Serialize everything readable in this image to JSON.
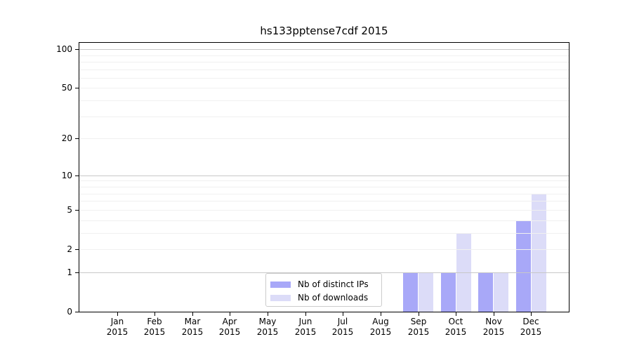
{
  "figure": {
    "background": "#ffffff"
  },
  "chart_data": {
    "type": "bar",
    "title": "hs133pptense7cdf 2015",
    "xlabel": "",
    "ylabel": "",
    "categories": [
      "Jan",
      "Feb",
      "Mar",
      "Apr",
      "May",
      "Jun",
      "Jul",
      "Aug",
      "Sep",
      "Oct",
      "Nov",
      "Dec"
    ],
    "x_tick_year": "2015",
    "series": [
      {
        "name": "Nb of distinct IPs",
        "color": "#a8a8f8",
        "values": [
          0,
          0,
          0,
          0,
          0,
          0,
          0,
          0,
          1,
          1,
          1,
          4
        ]
      },
      {
        "name": "Nb of downloads",
        "color": "#dcdcf8",
        "values": [
          0,
          0,
          0,
          0,
          0,
          0,
          0,
          0,
          1,
          3,
          1,
          7
        ]
      }
    ],
    "y_scale": "log10(1+v)",
    "ylim": [
      0,
      112
    ],
    "y_tick_values": [
      0,
      1,
      2,
      5,
      10,
      20,
      50,
      100
    ],
    "y_major_gridlines": [
      1,
      10,
      100
    ],
    "y_minor_gridlines": [
      2,
      3,
      4,
      5,
      6,
      7,
      8,
      9,
      20,
      30,
      40,
      50,
      60,
      70,
      80,
      90
    ],
    "grid": "horizontal",
    "legend_position": "inside-bottom-center",
    "colors": {
      "axis": "#000000",
      "text": "#000000",
      "major_grid": "#c8c8c8",
      "minor_grid": "#f0f0f0",
      "legend_border": "#cccccc",
      "background": "#ffffff"
    }
  }
}
